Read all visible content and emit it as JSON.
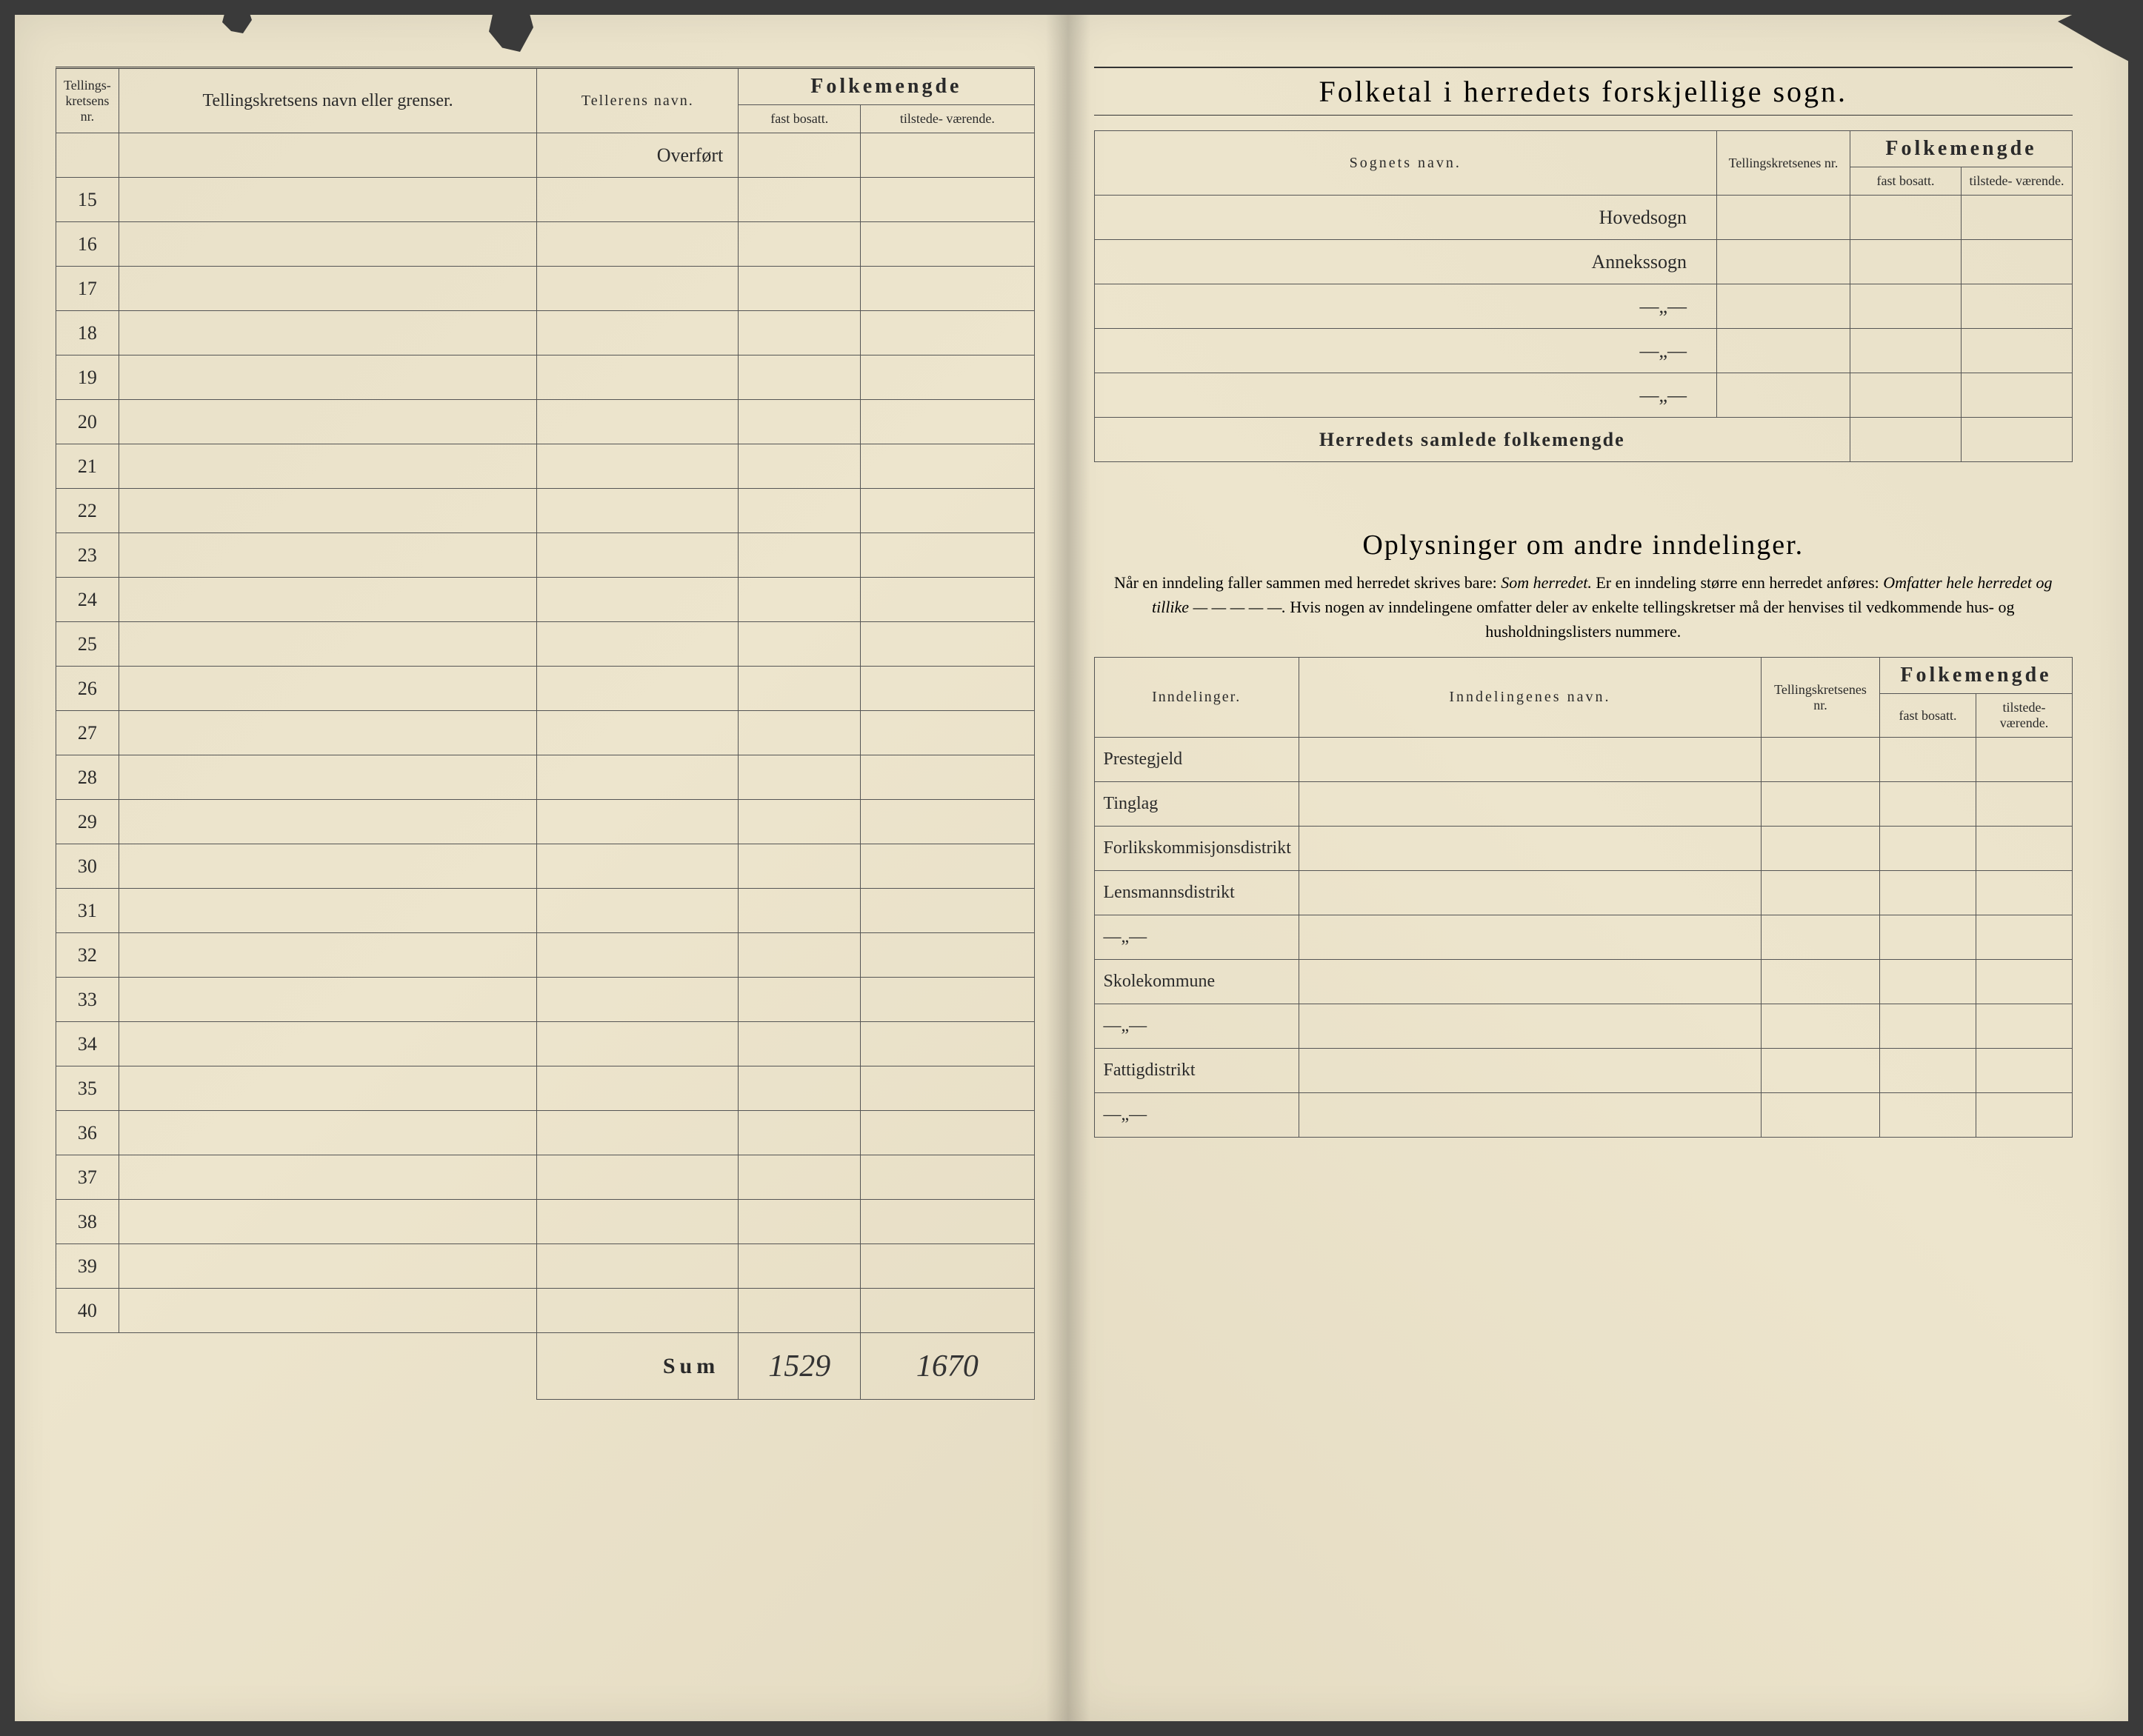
{
  "leftPage": {
    "headers": {
      "col1": "Tellings-\nkretsens\nnr.",
      "col2": "Tellingskretsens navn eller grenser.",
      "col3": "Tellerens navn.",
      "folkemengde": "Folkemengde",
      "fast": "fast\nbosatt.",
      "tilstede": "tilstede-\nværende."
    },
    "overfort": "Overført",
    "rowNumbers": [
      "15",
      "16",
      "17",
      "18",
      "19",
      "20",
      "21",
      "22",
      "23",
      "24",
      "25",
      "26",
      "27",
      "28",
      "29",
      "30",
      "31",
      "32",
      "33",
      "34",
      "35",
      "36",
      "37",
      "38",
      "39",
      "40"
    ],
    "sumLabel": "Sum",
    "sumFast": "1529",
    "sumTilstede": "1670"
  },
  "rightPage": {
    "title": "Folketal i herredets forskjellige sogn.",
    "sognHeaders": {
      "sognetsNavn": "Sognets navn.",
      "tellingskretsenes": "Tellingskretsenes\nnr.",
      "folkemengde": "Folkemengde",
      "fast": "fast\nbosatt.",
      "tilstede": "tilstede-\nværende."
    },
    "sognRows": [
      "Hovedsogn",
      "Annekssogn",
      "—„—",
      "—„—",
      "—„—"
    ],
    "samlede": "Herredets samlede folkemengde",
    "section2Title": "Oplysninger om andre inndelinger.",
    "section2Note": "Når en inndeling faller sammen med herredet skrives bare: <em>Som herredet.</em> Er en inndeling større enn herredet anføres: <em>Omfatter hele herredet og tillike — — — — —.</em> Hvis nogen av inndelingene omfatter deler av enkelte tellingskretser må der henvises til vedkommende hus- og husholdningslisters nummere.",
    "indHeaders": {
      "inndelinger": "Inndelinger.",
      "navn": "Inndelingenes navn.",
      "tellingskretsenes": "Tellingskretsenes\nnr.",
      "folkemengde": "Folkemengde",
      "fast": "fast\nbosatt.",
      "tilstede": "tilstede-\nværende."
    },
    "indRows": [
      "Prestegjeld",
      "Tinglag",
      "Forlikskommisjonsdistrikt",
      "Lensmannsdistrikt",
      "—„—",
      "Skolekommune",
      "—„—",
      "Fattigdistrikt",
      "—„—"
    ]
  },
  "colors": {
    "paper": "#ede5cd",
    "ink": "#2a2a2a",
    "border": "#555"
  }
}
